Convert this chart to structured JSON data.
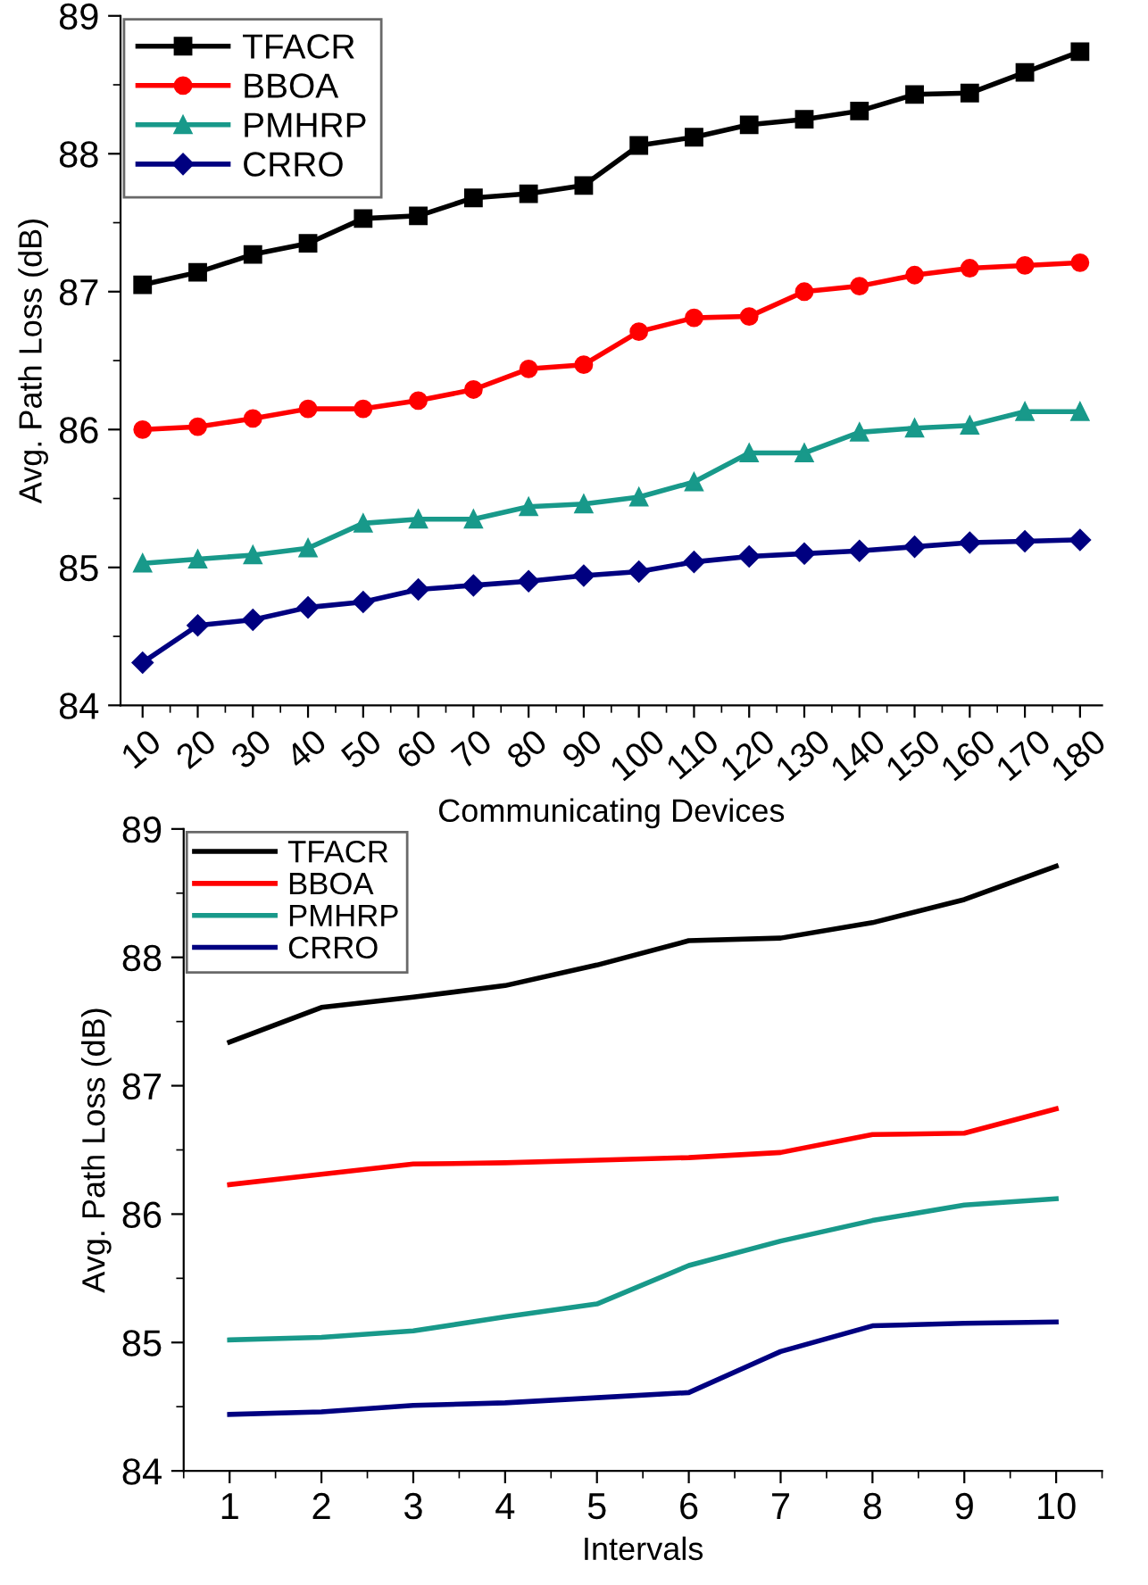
{
  "chart_data": [
    {
      "type": "line",
      "xlabel": "Communicating Devices",
      "ylabel": "Avg. Path Loss (dB)",
      "x": [
        10,
        20,
        30,
        40,
        50,
        60,
        70,
        80,
        90,
        100,
        110,
        120,
        130,
        140,
        150,
        160,
        170,
        180
      ],
      "series": [
        {
          "name": "TFACR",
          "color": "#000000",
          "marker": "square",
          "values": [
            87.05,
            87.14,
            87.27,
            87.35,
            87.53,
            87.55,
            87.68,
            87.71,
            87.77,
            88.06,
            88.12,
            88.21,
            88.25,
            88.31,
            88.43,
            88.44,
            88.59,
            88.74
          ]
        },
        {
          "name": "BBOA",
          "color": "#ff0000",
          "marker": "circle",
          "values": [
            86.0,
            86.02,
            86.08,
            86.15,
            86.15,
            86.21,
            86.29,
            86.44,
            86.47,
            86.71,
            86.81,
            86.82,
            87.0,
            87.04,
            87.12,
            87.17,
            87.19,
            87.21
          ]
        },
        {
          "name": "PMHRP",
          "color": "#18998a",
          "marker": "triangle",
          "values": [
            85.03,
            85.06,
            85.09,
            85.14,
            85.32,
            85.35,
            85.35,
            85.44,
            85.46,
            85.51,
            85.62,
            85.83,
            85.83,
            85.98,
            86.01,
            86.03,
            86.13,
            86.13
          ]
        },
        {
          "name": "CRRO",
          "color": "#000080",
          "marker": "diamond",
          "values": [
            84.31,
            84.58,
            84.62,
            84.71,
            84.75,
            84.84,
            84.87,
            84.9,
            84.94,
            84.97,
            85.04,
            85.08,
            85.1,
            85.12,
            85.15,
            85.18,
            85.19,
            85.2
          ]
        }
      ],
      "xlim": [
        6,
        184
      ],
      "xticks": [
        10,
        20,
        30,
        40,
        50,
        60,
        70,
        80,
        90,
        100,
        110,
        120,
        130,
        140,
        150,
        160,
        170,
        180
      ],
      "ylim": [
        84,
        89
      ],
      "yticks": [
        84,
        85,
        86,
        87,
        88,
        89
      ],
      "legend": "top left",
      "grid": false
    },
    {
      "type": "line",
      "xlabel": "Intervals",
      "ylabel": "Avg. Path Loss (dB)",
      "x": [
        1,
        2,
        3,
        4,
        5,
        6,
        7,
        8,
        9,
        10
      ],
      "series": [
        {
          "name": "TFACR",
          "color": "#000000",
          "values": [
            87.34,
            87.61,
            87.69,
            87.78,
            87.94,
            88.13,
            88.15,
            88.27,
            88.45,
            88.71
          ]
        },
        {
          "name": "BBOA",
          "color": "#ff0000",
          "values": [
            86.23,
            86.31,
            86.39,
            86.4,
            86.42,
            86.44,
            86.48,
            86.62,
            86.63,
            86.82
          ]
        },
        {
          "name": "PMHRP",
          "color": "#18998a",
          "values": [
            85.02,
            85.04,
            85.09,
            85.2,
            85.3,
            85.6,
            85.79,
            85.95,
            86.07,
            86.12
          ]
        },
        {
          "name": "CRRO",
          "color": "#000080",
          "values": [
            84.44,
            84.46,
            84.51,
            84.53,
            84.57,
            84.61,
            84.93,
            85.13,
            85.15,
            85.16
          ]
        }
      ],
      "xlim": [
        0.5,
        10.5
      ],
      "xticks": [
        1,
        2,
        3,
        4,
        5,
        6,
        7,
        8,
        9,
        10
      ],
      "ylim": [
        84,
        89
      ],
      "yticks": [
        84,
        85,
        86,
        87,
        88,
        89
      ],
      "legend": "top left",
      "grid": false
    }
  ]
}
